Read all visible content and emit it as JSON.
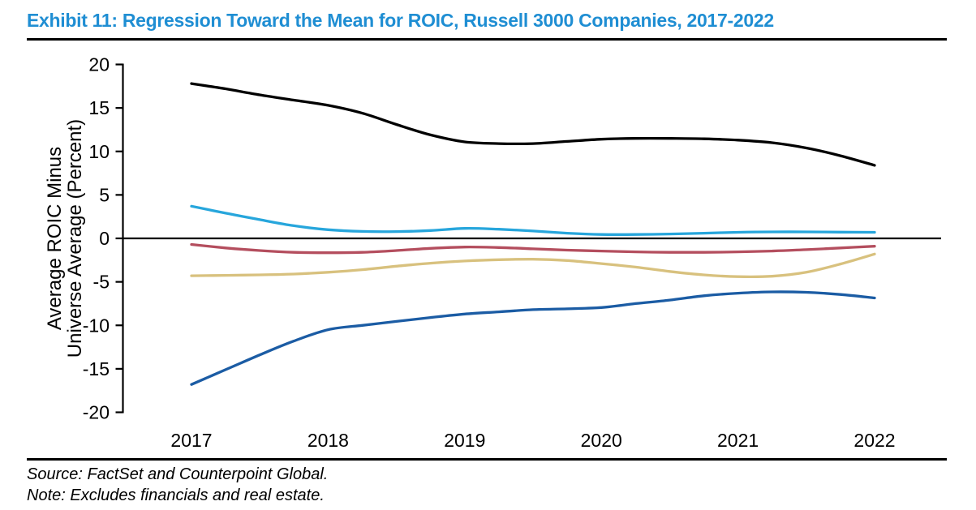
{
  "header": {
    "title": "Exhibit 11: Regression Toward the Mean for ROIC, Russell 3000 Companies, 2017-2022"
  },
  "footer": {
    "source": "Source: FactSet and Counterpoint Global.",
    "note": "Note: Excludes financials and real estate."
  },
  "colors": {
    "title_accent": "#1F8ED3",
    "axis": "#000000"
  },
  "chart_data": {
    "type": "line",
    "title": "Exhibit 11: Regression Toward the Mean for ROIC, Russell 3000 Companies, 2017-2022",
    "ylabel_lines": [
      "Average ROIC Minus",
      "Universe Average (Percent)"
    ],
    "xlabel": "",
    "ylim": [
      -20,
      20
    ],
    "yticks": [
      20,
      15,
      10,
      5,
      0,
      -5,
      -10,
      -15,
      -20
    ],
    "x_range": [
      2017,
      2022
    ],
    "x_tick_labels": [
      "2017",
      "2018",
      "2019",
      "2020",
      "2021",
      "2022"
    ],
    "grid": false,
    "legend": "none",
    "sample_x": [
      2017,
      2017.25,
      2017.5,
      2017.75,
      2018,
      2018.25,
      2018.5,
      2018.75,
      2019,
      2019.25,
      2019.5,
      2019.75,
      2020,
      2020.25,
      2020.5,
      2020.75,
      2021,
      2021.25,
      2021.5,
      2021.75,
      2022
    ],
    "series": [
      {
        "name": "black",
        "color": "#000000",
        "values": [
          17.8,
          17.2,
          16.5,
          15.9,
          15.3,
          14.4,
          13.1,
          11.9,
          11.1,
          10.9,
          10.9,
          11.15,
          11.4,
          11.5,
          11.5,
          11.45,
          11.3,
          11.0,
          10.4,
          9.5,
          8.4
        ]
      },
      {
        "name": "light-blue",
        "color": "#27A6DC",
        "values": [
          3.7,
          2.9,
          2.15,
          1.45,
          1.0,
          0.8,
          0.78,
          0.9,
          1.15,
          1.05,
          0.85,
          0.6,
          0.45,
          0.45,
          0.5,
          0.6,
          0.7,
          0.75,
          0.75,
          0.72,
          0.7
        ]
      },
      {
        "name": "crimson",
        "color": "#B44E5E",
        "values": [
          -0.7,
          -1.1,
          -1.4,
          -1.6,
          -1.65,
          -1.6,
          -1.4,
          -1.15,
          -1.0,
          -1.05,
          -1.2,
          -1.35,
          -1.45,
          -1.55,
          -1.6,
          -1.6,
          -1.55,
          -1.45,
          -1.3,
          -1.1,
          -0.9
        ]
      },
      {
        "name": "khaki",
        "color": "#D8C17E",
        "values": [
          -4.3,
          -4.25,
          -4.2,
          -4.1,
          -3.9,
          -3.6,
          -3.2,
          -2.85,
          -2.6,
          -2.45,
          -2.4,
          -2.55,
          -2.9,
          -3.3,
          -3.8,
          -4.2,
          -4.4,
          -4.35,
          -3.9,
          -2.95,
          -1.8
        ]
      },
      {
        "name": "dark-blue",
        "color": "#1B5CA4",
        "values": [
          -16.8,
          -15.1,
          -13.4,
          -11.8,
          -10.5,
          -10.0,
          -9.55,
          -9.1,
          -8.7,
          -8.45,
          -8.2,
          -8.1,
          -7.95,
          -7.5,
          -7.1,
          -6.6,
          -6.3,
          -6.15,
          -6.2,
          -6.45,
          -6.85
        ]
      }
    ],
    "values_at_year_ticks": {
      "black": [
        17.8,
        15.3,
        11.1,
        11.4,
        11.3,
        8.4
      ],
      "light-blue": [
        3.7,
        1.0,
        1.15,
        0.45,
        0.7,
        0.7
      ],
      "crimson": [
        -0.7,
        -1.65,
        -1.0,
        -1.45,
        -1.55,
        -0.9
      ],
      "khaki": [
        -4.3,
        -3.9,
        -2.6,
        -2.9,
        -4.4,
        -1.8
      ],
      "dark-blue": [
        -16.8,
        -10.5,
        -8.7,
        -7.95,
        -6.3,
        -6.85
      ]
    }
  }
}
